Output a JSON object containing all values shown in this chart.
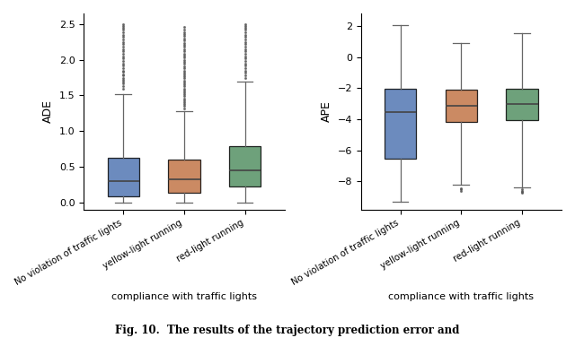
{
  "plot1": {
    "ylabel": "ADE",
    "xlabel": "compliance with traffic lights",
    "ylim": [
      -0.1,
      2.65
    ],
    "yticks": [
      0.0,
      0.5,
      1.0,
      1.5,
      2.0,
      2.5
    ],
    "categories": [
      "No violation of traffic lights",
      "yellow-light running",
      "red-light running"
    ],
    "colors": [
      "#4c72b0",
      "#c07141",
      "#4e8c5e"
    ],
    "boxes": [
      {
        "q1": 0.08,
        "median": 0.3,
        "q3": 0.63,
        "whislo": 0.0,
        "whishi": 1.52,
        "fliers_high": [
          1.6,
          1.63,
          1.67,
          1.7,
          1.72,
          1.75,
          1.78,
          1.8,
          1.83,
          1.85,
          1.88,
          1.92,
          1.95,
          1.98,
          2.02,
          2.05,
          2.08,
          2.12,
          2.15,
          2.18,
          2.22,
          2.25,
          2.28,
          2.32,
          2.35,
          2.38,
          2.42,
          2.45,
          2.48,
          2.5
        ],
        "fliers_low": []
      },
      {
        "q1": 0.13,
        "median": 0.33,
        "q3": 0.6,
        "whislo": 0.0,
        "whishi": 1.28,
        "fliers_high": [
          1.32,
          1.35,
          1.38,
          1.4,
          1.43,
          1.46,
          1.49,
          1.52,
          1.54,
          1.57,
          1.6,
          1.63,
          1.66,
          1.68,
          1.71,
          1.74,
          1.77,
          1.8,
          1.82,
          1.85,
          1.88,
          1.91,
          1.94,
          1.97,
          2.0,
          2.03,
          2.06,
          2.09,
          2.12,
          2.15,
          2.18,
          2.21,
          2.24,
          2.27,
          2.3,
          2.33,
          2.36,
          2.39,
          2.42,
          2.46
        ],
        "fliers_low": []
      },
      {
        "q1": 0.22,
        "median": 0.45,
        "q3": 0.79,
        "whislo": 0.0,
        "whishi": 1.7,
        "fliers_high": [
          1.75,
          1.78,
          1.82,
          1.85,
          1.88,
          1.92,
          1.95,
          1.98,
          2.02,
          2.05,
          2.08,
          2.12,
          2.15,
          2.18,
          2.22,
          2.25,
          2.28,
          2.32,
          2.35,
          2.38,
          2.42,
          2.45,
          2.48,
          2.5
        ],
        "fliers_low": []
      }
    ]
  },
  "plot2": {
    "ylabel": "APE",
    "xlabel": "compliance with traffic lights",
    "ylim": [
      -9.8,
      2.8
    ],
    "yticks": [
      -8,
      -6,
      -4,
      -2,
      0,
      2
    ],
    "categories": [
      "No violation of traffic lights",
      "yellow-light running",
      "red-light running"
    ],
    "colors": [
      "#4c72b0",
      "#c07141",
      "#4e8c5e"
    ],
    "boxes": [
      {
        "q1": -6.55,
        "median": -3.55,
        "q3": -2.05,
        "whislo": -9.3,
        "whishi": 2.05,
        "fliers_high": [],
        "fliers_low": []
      },
      {
        "q1": -4.15,
        "median": -3.15,
        "q3": -2.1,
        "whislo": -8.22,
        "whishi": 0.92,
        "fliers_high": [],
        "fliers_low": [
          -8.42,
          -8.5,
          -8.58
        ]
      },
      {
        "q1": -4.05,
        "median": -3.0,
        "q3": -2.05,
        "whislo": -8.35,
        "whishi": 1.52,
        "fliers_high": [],
        "fliers_low": [
          -8.5,
          -8.58,
          -8.65,
          -8.72
        ]
      }
    ]
  },
  "fig_caption": "Fig. 10.  The results of the trajectory prediction error and"
}
